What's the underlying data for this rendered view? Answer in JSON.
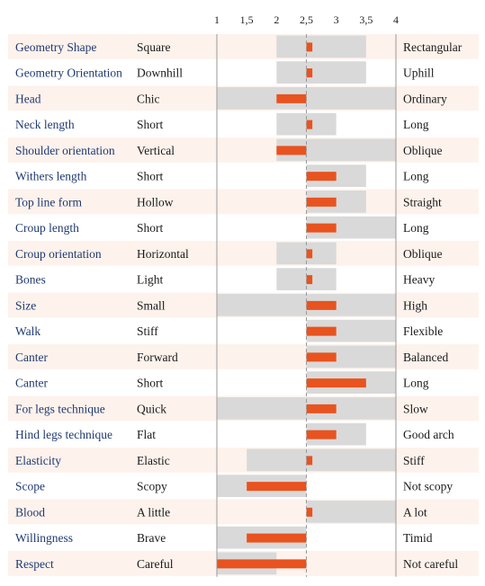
{
  "chart_data": {
    "type": "bar",
    "xlim": [
      1,
      4
    ],
    "ticks": [
      "1",
      "1,5",
      "2",
      "2,5",
      "3",
      "3,5",
      "4"
    ],
    "tick_values": [
      1,
      1.5,
      2,
      2.5,
      3,
      3.5,
      4
    ],
    "baseline": 2.5,
    "colors": {
      "row_alt": "#fdf2ec",
      "range": "#d9d9d9",
      "bar": "#e8531f",
      "trait_text": "#1f3a73",
      "grid": "#9a9a9a"
    },
    "rows": [
      {
        "trait": "Geometry Shape",
        "low": "Square",
        "high": "Rectangular",
        "range": [
          2,
          3.5
        ],
        "value": 2.6
      },
      {
        "trait": "Geometry Orientation",
        "low": "Downhill",
        "high": "Uphill",
        "range": [
          2,
          3.5
        ],
        "value": 2.6
      },
      {
        "trait": "Head",
        "low": "Chic",
        "high": "Ordinary",
        "range": [
          1,
          4
        ],
        "value": 2.0
      },
      {
        "trait": "Neck length",
        "low": "Short",
        "high": "Long",
        "range": [
          2,
          3
        ],
        "value": 2.6
      },
      {
        "trait": "Shoulder orientation",
        "low": "Vertical",
        "high": "Oblique",
        "range": [
          2,
          4
        ],
        "value": 2.0
      },
      {
        "trait": "Withers length",
        "low": "Short",
        "high": "Long",
        "range": [
          2.5,
          3.5
        ],
        "value": 3.0
      },
      {
        "trait": "Top line form",
        "low": "Hollow",
        "high": "Straight",
        "range": [
          2.5,
          3.5
        ],
        "value": 3.0
      },
      {
        "trait": "Croup length",
        "low": "Short",
        "high": "Long",
        "range": [
          2.5,
          4
        ],
        "value": 3.0
      },
      {
        "trait": "Croup orientation",
        "low": "Horizontal",
        "high": "Oblique",
        "range": [
          2,
          3
        ],
        "value": 2.6
      },
      {
        "trait": "Bones",
        "low": "Light",
        "high": "Heavy",
        "range": [
          2,
          3
        ],
        "value": 2.6
      },
      {
        "trait": "Size",
        "low": "Small",
        "high": "High",
        "range": [
          1,
          4
        ],
        "value": 3.0
      },
      {
        "trait": "Walk",
        "low": "Stiff",
        "high": "Flexible",
        "range": [
          2.5,
          4
        ],
        "value": 3.0
      },
      {
        "trait": "Canter",
        "low": "Forward",
        "high": "Balanced",
        "range": [
          2.5,
          4
        ],
        "value": 3.0
      },
      {
        "trait": "Canter",
        "low": "Short",
        "high": "Long",
        "range": [
          2.5,
          4
        ],
        "value": 3.5
      },
      {
        "trait": "For legs technique",
        "low": "Quick",
        "high": "Slow",
        "range": [
          1,
          4
        ],
        "value": 3.0
      },
      {
        "trait": "Hind legs technique",
        "low": "Flat",
        "high": "Good arch",
        "range": [
          2.5,
          3.5
        ],
        "value": 3.0
      },
      {
        "trait": "Elasticity",
        "low": "Elastic",
        "high": "Stiff",
        "range": [
          1.5,
          4
        ],
        "value": 2.6
      },
      {
        "trait": "Scope",
        "low": "Scopy",
        "high": "Not scopy",
        "range": [
          1,
          2.5
        ],
        "value": 1.5
      },
      {
        "trait": "Blood",
        "low": "A little",
        "high": "A lot",
        "range": [
          2.5,
          4
        ],
        "value": 2.6
      },
      {
        "trait": "Willingness",
        "low": "Brave",
        "high": "Timid",
        "range": [
          1,
          2.5
        ],
        "value": 1.5
      },
      {
        "trait": "Respect",
        "low": "Careful",
        "high": "Not careful",
        "range": [
          1,
          2
        ],
        "value": 1.0
      }
    ]
  }
}
